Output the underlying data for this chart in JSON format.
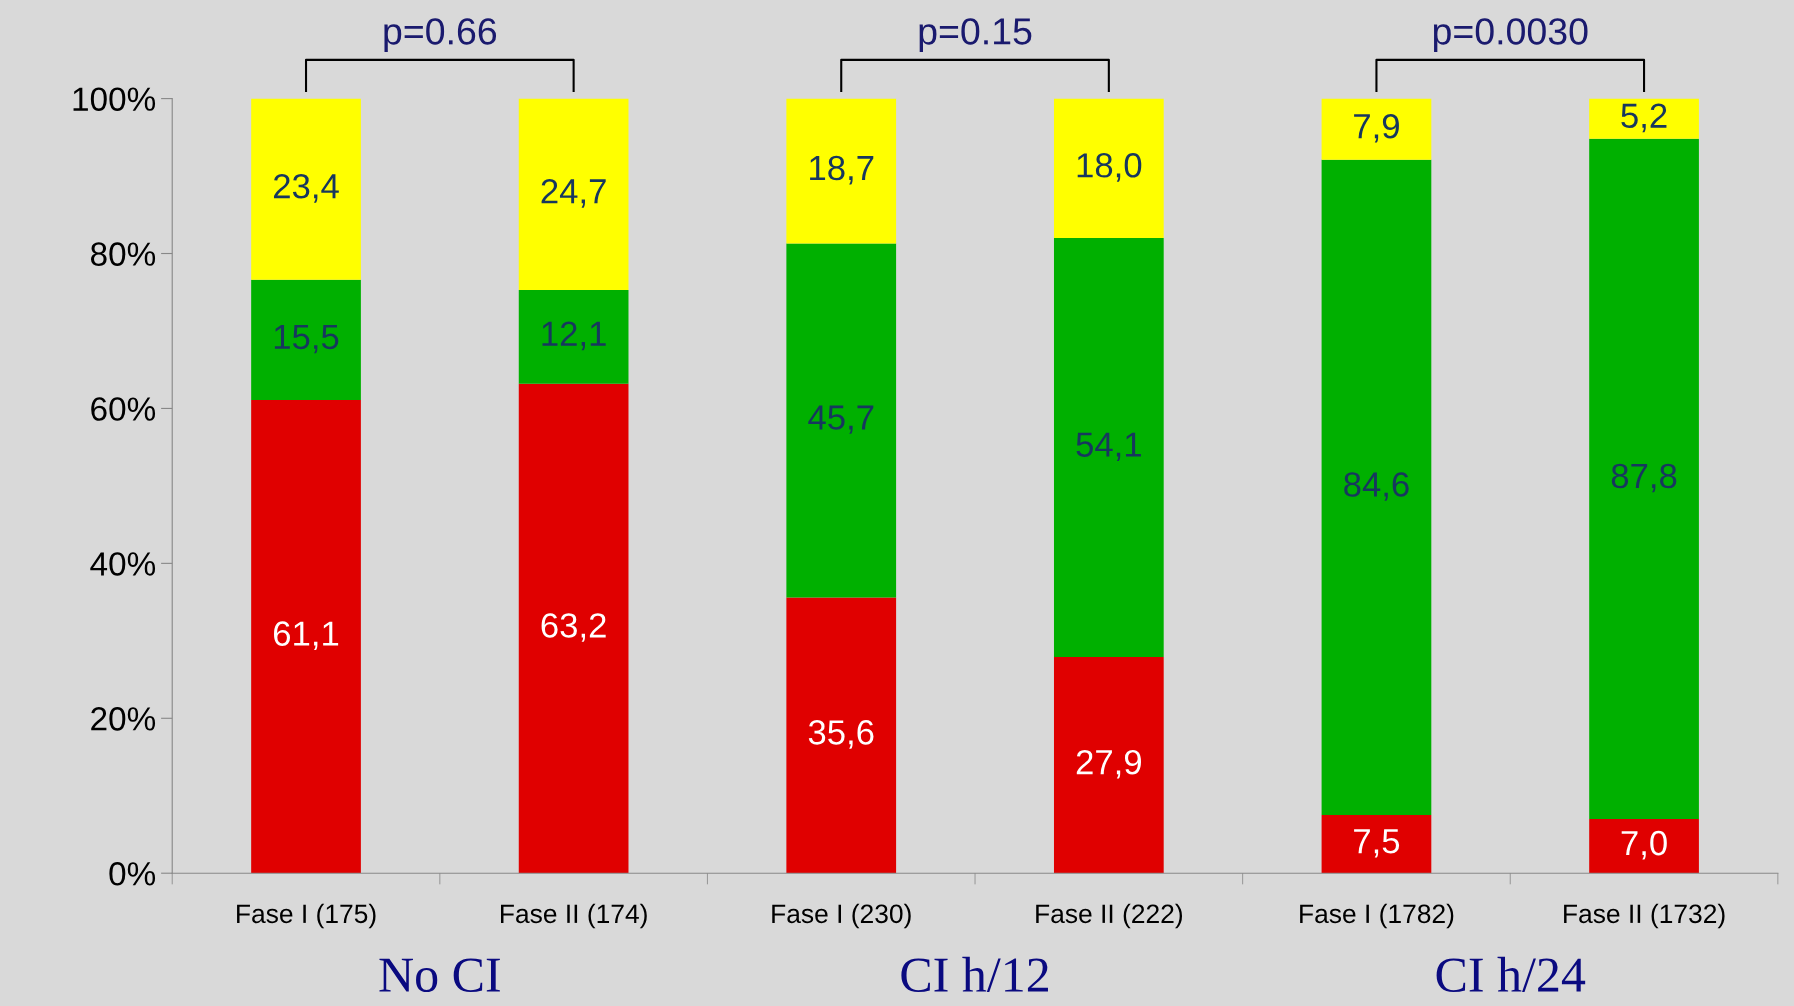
{
  "chart_data": {
    "type": "bar",
    "stacked": true,
    "categories": [
      "Fase I (175)",
      "Fase II (174)",
      "Fase I (230)",
      "Fase II (222)",
      "Fase I (1782)",
      "Fase II (1732)"
    ],
    "series": [
      {
        "color": "#e00000",
        "values": [
          61.1,
          63.2,
          35.6,
          27.9,
          7.5,
          7.0
        ],
        "value_labels": [
          "61,1",
          "63,2",
          "35,6",
          "27,9",
          "7,5",
          "7,0"
        ]
      },
      {
        "color": "#00b000",
        "values": [
          15.5,
          12.1,
          45.7,
          54.1,
          84.6,
          87.8
        ],
        "value_labels": [
          "15,5",
          "12,1",
          "45,7",
          "54,1",
          "84,6",
          "87,8"
        ]
      },
      {
        "color": "#ffff00",
        "values": [
          23.4,
          24.7,
          18.7,
          18.0,
          7.9,
          5.2
        ],
        "value_labels": [
          "23,4",
          "24,7",
          "18,7",
          "18,0",
          "7,9",
          "5,2"
        ]
      }
    ],
    "ylim": [
      0,
      100
    ],
    "yticks": [
      {
        "value": 0,
        "label": "0%"
      },
      {
        "value": 20,
        "label": "20%"
      },
      {
        "value": 40,
        "label": "40%"
      },
      {
        "value": 60,
        "label": "60%"
      },
      {
        "value": 80,
        "label": "80%"
      },
      {
        "value": 100,
        "label": "100%"
      }
    ],
    "annotations": [
      "p=0.66",
      "p=0.15",
      "p=0.0030",
      "No CI",
      "CI h/12",
      "CI h/24"
    ],
    "grid": false,
    "legend": false
  }
}
